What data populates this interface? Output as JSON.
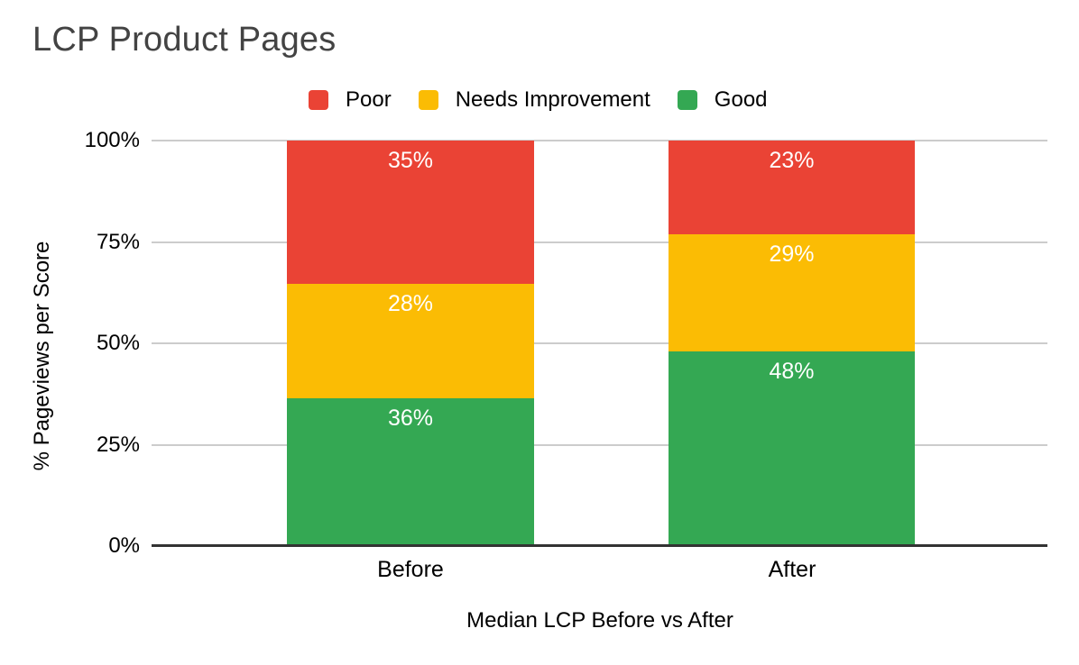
{
  "chart_data": {
    "type": "bar",
    "stacked": true,
    "title": "LCP Product Pages",
    "categories": [
      "Before",
      "After"
    ],
    "series": [
      {
        "name": "Good",
        "color": "#34A853",
        "values": [
          36,
          48
        ]
      },
      {
        "name": "Needs Improvement",
        "color": "#FBBC04",
        "values": [
          28,
          29
        ]
      },
      {
        "name": "Poor",
        "color": "#EA4335",
        "values": [
          35,
          23
        ]
      }
    ],
    "legend": [
      {
        "label": "Poor",
        "color": "#EA4335"
      },
      {
        "label": "Needs Improvement",
        "color": "#FBBC04"
      },
      {
        "label": "Good",
        "color": "#34A853"
      }
    ],
    "legend_position": "top",
    "data_labels": [
      "35%",
      "28%",
      "36%",
      "23%",
      "29%",
      "48%"
    ],
    "value_suffix": "%",
    "xlabel": "Median LCP Before vs After",
    "ylabel": "% Pageviews per Score",
    "ylim": [
      0,
      100
    ],
    "yticks": [
      0,
      25,
      50,
      75,
      100
    ],
    "ytick_labels": [
      "0%",
      "25%",
      "50%",
      "75%",
      "100%"
    ],
    "grid": true
  },
  "colors": {
    "background": "#FFFFFF",
    "title_text": "#434343",
    "axis_text": "#000000",
    "gridline": "#CCCCCC",
    "baseline": "#333333",
    "bar_label_text": "#FFFFFF"
  }
}
